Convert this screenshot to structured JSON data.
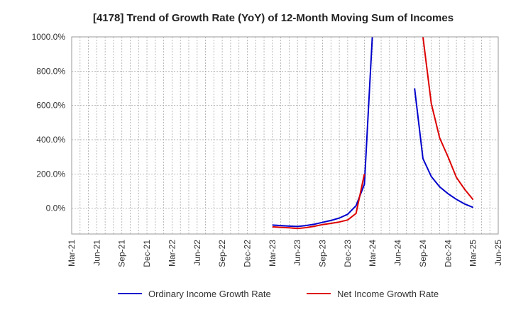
{
  "chart_data": {
    "type": "line",
    "title": "[4178]  Trend of Growth Rate (YoY) of 12-Month Moving Sum of Incomes",
    "xlabel": "",
    "ylabel": "",
    "ylim": [
      -150,
      1000
    ],
    "y_ticks": [
      0,
      200,
      400,
      600,
      800,
      1000
    ],
    "y_tick_labels": [
      "0.0%",
      "200.0%",
      "400.0%",
      "600.0%",
      "800.0%",
      "1000.0%"
    ],
    "x_ticks": [
      "Mar-21",
      "Jun-21",
      "Sep-21",
      "Dec-21",
      "Mar-22",
      "Jun-22",
      "Sep-22",
      "Dec-22",
      "Mar-23",
      "Jun-23",
      "Sep-23",
      "Dec-23",
      "Mar-24",
      "Jun-24",
      "Sep-24",
      "Dec-24",
      "Mar-25",
      "Jun-25"
    ],
    "grid": true,
    "legend_position": "bottom",
    "series": [
      {
        "name": "Ordinary Income Growth Rate",
        "color": "#0000cc",
        "segments": [
          [
            {
              "x": "2023-03",
              "y": -98
            },
            {
              "x": "2023-04",
              "y": -101
            },
            {
              "x": "2023-05",
              "y": -104
            },
            {
              "x": "2023-06",
              "y": -106
            },
            {
              "x": "2023-07",
              "y": -101
            },
            {
              "x": "2023-08",
              "y": -93
            },
            {
              "x": "2023-09",
              "y": -82
            },
            {
              "x": "2023-10",
              "y": -71
            },
            {
              "x": "2023-11",
              "y": -57
            },
            {
              "x": "2023-12",
              "y": -35
            },
            {
              "x": "2024-01",
              "y": 15
            },
            {
              "x": "2024-02",
              "y": 140
            },
            {
              "x": "2024-03",
              "y": 1050
            }
          ],
          [
            {
              "x": "2024-08",
              "y": 700
            },
            {
              "x": "2024-09",
              "y": 290
            },
            {
              "x": "2024-10",
              "y": 185
            },
            {
              "x": "2024-11",
              "y": 125
            },
            {
              "x": "2024-12",
              "y": 85
            },
            {
              "x": "2025-01",
              "y": 52
            },
            {
              "x": "2025-02",
              "y": 25
            },
            {
              "x": "2025-03",
              "y": 5
            }
          ]
        ]
      },
      {
        "name": "Net Income Growth Rate",
        "color": "#dd0000",
        "segments": [
          [
            {
              "x": "2023-03",
              "y": -108
            },
            {
              "x": "2023-04",
              "y": -111
            },
            {
              "x": "2023-05",
              "y": -114
            },
            {
              "x": "2023-06",
              "y": -118
            },
            {
              "x": "2023-07",
              "y": -113
            },
            {
              "x": "2023-08",
              "y": -105
            },
            {
              "x": "2023-09",
              "y": -95
            },
            {
              "x": "2023-10",
              "y": -88
            },
            {
              "x": "2023-11",
              "y": -80
            },
            {
              "x": "2023-12",
              "y": -68
            },
            {
              "x": "2024-01",
              "y": -30
            },
            {
              "x": "2024-02",
              "y": 200
            }
          ],
          [
            {
              "x": "2024-08",
              "y": 1050
            },
            {
              "x": "2024-09",
              "y": 1000
            },
            {
              "x": "2024-10",
              "y": 610
            },
            {
              "x": "2024-11",
              "y": 410
            },
            {
              "x": "2024-12",
              "y": 300
            },
            {
              "x": "2025-01",
              "y": 180
            },
            {
              "x": "2025-02",
              "y": 110
            },
            {
              "x": "2025-03",
              "y": 50
            }
          ]
        ]
      }
    ]
  }
}
